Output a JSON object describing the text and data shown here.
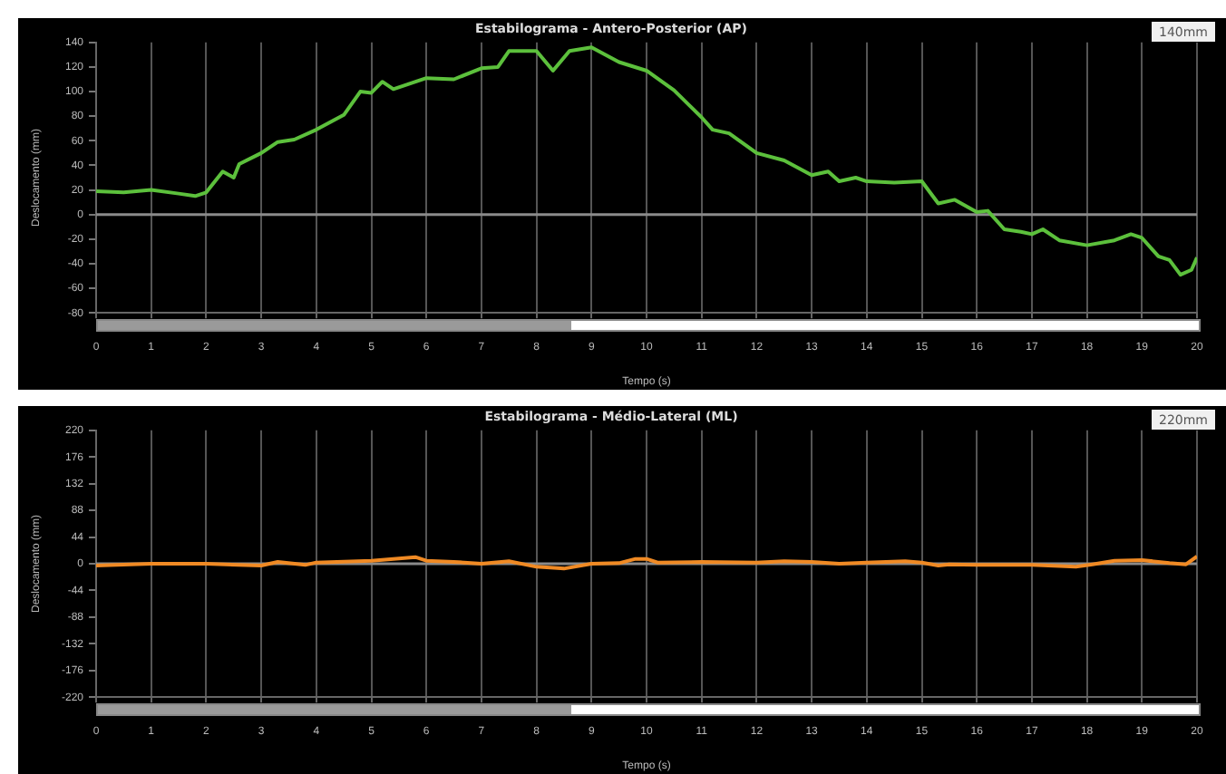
{
  "chart_data": [
    {
      "type": "line",
      "title": "Estabilograma - Antero-Posterior (AP)",
      "xlabel": "Tempo (s)",
      "ylabel": "Deslocamento (mm)",
      "annotations": [
        "140mm"
      ],
      "x": [
        0,
        0.5,
        1,
        1.5,
        1.8,
        2,
        2.3,
        2.5,
        2.6,
        3,
        3.3,
        3.6,
        4,
        4.5,
        4.8,
        5,
        5.2,
        5.4,
        6,
        6.5,
        7,
        7.3,
        7.5,
        8,
        8.3,
        8.6,
        9,
        9.5,
        10,
        10.5,
        11,
        11.2,
        11.5,
        12,
        12.5,
        13,
        13.3,
        13.5,
        13.8,
        14,
        14.5,
        15,
        15.3,
        15.6,
        16,
        16.2,
        16.5,
        16.8,
        17,
        17.2,
        17.5,
        18,
        18.5,
        18.8,
        19,
        19.3,
        19.5,
        19.7,
        19.9,
        20
      ],
      "series": [
        {
          "color": "#5cc03c",
          "values": [
            19,
            18,
            20,
            17,
            15,
            18,
            35,
            30,
            41,
            50,
            59,
            61,
            69,
            81,
            100,
            99,
            108,
            102,
            111,
            110,
            119,
            120,
            133,
            133,
            117,
            133,
            136,
            124,
            117,
            101,
            79,
            69,
            66,
            50,
            44,
            32,
            35,
            27,
            30,
            27,
            26,
            27,
            9,
            12,
            2,
            3,
            -12,
            -14,
            -16,
            -12,
            -21,
            -25,
            -21,
            -16,
            -19,
            -34,
            -37,
            -49,
            -45,
            -35
          ]
        }
      ],
      "xlim": [
        0,
        20
      ],
      "xticks": [
        0,
        1,
        2,
        3,
        4,
        5,
        6,
        7,
        8,
        9,
        10,
        11,
        12,
        13,
        14,
        15,
        16,
        17,
        18,
        19,
        20
      ],
      "ylim": [
        -80,
        140
      ],
      "yticks": [
        -80,
        -60,
        -40,
        -20,
        0,
        20,
        40,
        60,
        80,
        100,
        120,
        140
      ],
      "grid": "x",
      "ref_lines": [
        {
          "axis": "y",
          "value": 0,
          "color": "#8a8a8a"
        }
      ]
    },
    {
      "type": "line",
      "title": "Estabilograma - Médio-Lateral (ML)",
      "xlabel": "Tempo (s)",
      "ylabel": "Deslocamento (mm)",
      "annotations": [
        "220mm"
      ],
      "x": [
        0,
        1,
        2,
        3,
        3.3,
        3.8,
        4,
        5,
        5.8,
        6,
        6.5,
        7,
        7.5,
        8,
        8.5,
        9,
        9.5,
        9.8,
        10,
        10.2,
        11,
        12,
        12.5,
        13,
        13.5,
        14,
        14.7,
        15,
        15.3,
        15.5,
        16,
        17,
        17.8,
        18.1,
        18.5,
        19,
        19.5,
        19.8,
        20
      ],
      "series": [
        {
          "color": "#f08a24",
          "values": [
            -3,
            0,
            0,
            -3,
            3,
            -2,
            2,
            5,
            11,
            5,
            3,
            0,
            4,
            -5,
            -8,
            0,
            1,
            8,
            8,
            2,
            3,
            2,
            4,
            3,
            0,
            2,
            4,
            2,
            -3,
            -1,
            -2,
            -2,
            -5,
            -1,
            5,
            6,
            1,
            -1,
            12
          ]
        }
      ],
      "xlim": [
        0,
        20
      ],
      "xticks": [
        0,
        1,
        2,
        3,
        4,
        5,
        6,
        7,
        8,
        9,
        10,
        11,
        12,
        13,
        14,
        15,
        16,
        17,
        18,
        19,
        20
      ],
      "ylim": [
        -220,
        220
      ],
      "yticks": [
        -220,
        -176,
        -132,
        -88,
        -44,
        0,
        44,
        88,
        132,
        176,
        220
      ],
      "grid": "x",
      "ref_lines": [
        {
          "axis": "y",
          "value": 0,
          "color": "#8a8a8a"
        }
      ]
    }
  ]
}
